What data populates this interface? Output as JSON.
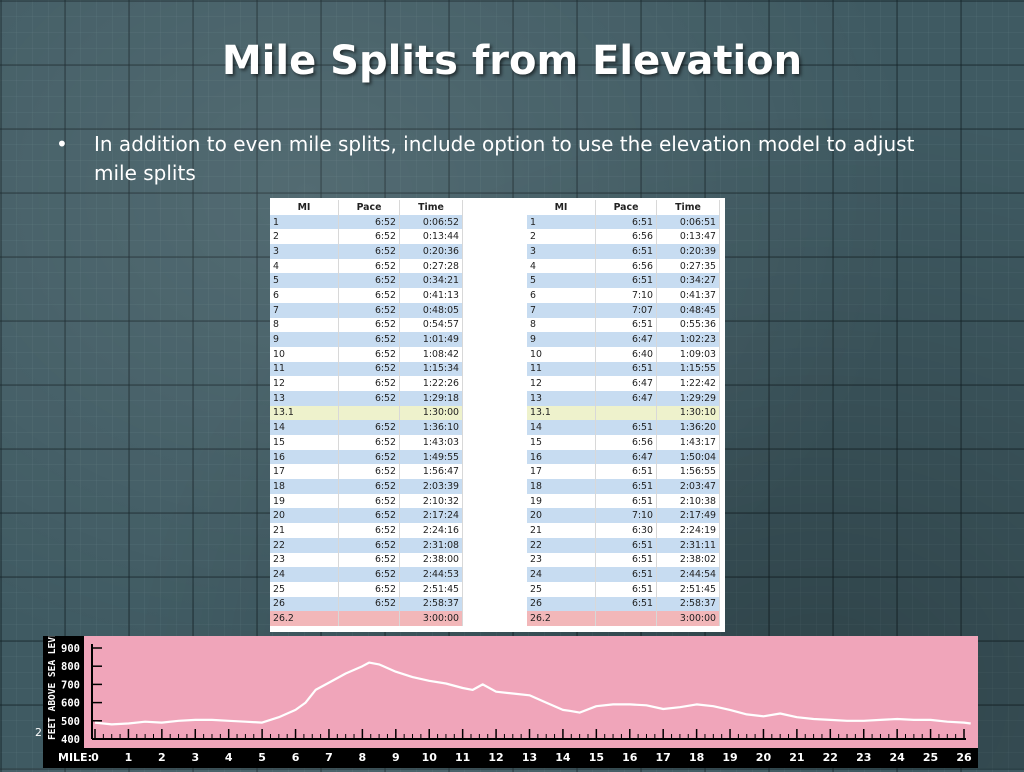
{
  "slide": {
    "title": "Mile Splits from Elevation",
    "bullet": "In addition to even mile splits, include option to use the elevation model to adjust mile splits",
    "bullet_mark": "•",
    "slide_number": "2"
  },
  "tables": {
    "headers": [
      "MI",
      "Pace",
      "Time"
    ],
    "even": [
      [
        "1",
        "6:52",
        "0:06:52"
      ],
      [
        "2",
        "6:52",
        "0:13:44"
      ],
      [
        "3",
        "6:52",
        "0:20:36"
      ],
      [
        "4",
        "6:52",
        "0:27:28"
      ],
      [
        "5",
        "6:52",
        "0:34:21"
      ],
      [
        "6",
        "6:52",
        "0:41:13"
      ],
      [
        "7",
        "6:52",
        "0:48:05"
      ],
      [
        "8",
        "6:52",
        "0:54:57"
      ],
      [
        "9",
        "6:52",
        "1:01:49"
      ],
      [
        "10",
        "6:52",
        "1:08:42"
      ],
      [
        "11",
        "6:52",
        "1:15:34"
      ],
      [
        "12",
        "6:52",
        "1:22:26"
      ],
      [
        "13",
        "6:52",
        "1:29:18"
      ],
      [
        "13.1",
        "",
        "1:30:00"
      ],
      [
        "14",
        "6:52",
        "1:36:10"
      ],
      [
        "15",
        "6:52",
        "1:43:03"
      ],
      [
        "16",
        "6:52",
        "1:49:55"
      ],
      [
        "17",
        "6:52",
        "1:56:47"
      ],
      [
        "18",
        "6:52",
        "2:03:39"
      ],
      [
        "19",
        "6:52",
        "2:10:32"
      ],
      [
        "20",
        "6:52",
        "2:17:24"
      ],
      [
        "21",
        "6:52",
        "2:24:16"
      ],
      [
        "22",
        "6:52",
        "2:31:08"
      ],
      [
        "23",
        "6:52",
        "2:38:00"
      ],
      [
        "24",
        "6:52",
        "2:44:53"
      ],
      [
        "25",
        "6:52",
        "2:51:45"
      ],
      [
        "26",
        "6:52",
        "2:58:37"
      ],
      [
        "26.2",
        "",
        "3:00:00"
      ]
    ],
    "elevation": [
      [
        "1",
        "6:51",
        "0:06:51"
      ],
      [
        "2",
        "6:56",
        "0:13:47"
      ],
      [
        "3",
        "6:51",
        "0:20:39"
      ],
      [
        "4",
        "6:56",
        "0:27:35"
      ],
      [
        "5",
        "6:51",
        "0:34:27"
      ],
      [
        "6",
        "7:10",
        "0:41:37"
      ],
      [
        "7",
        "7:07",
        "0:48:45"
      ],
      [
        "8",
        "6:51",
        "0:55:36"
      ],
      [
        "9",
        "6:47",
        "1:02:23"
      ],
      [
        "10",
        "6:40",
        "1:09:03"
      ],
      [
        "11",
        "6:51",
        "1:15:55"
      ],
      [
        "12",
        "6:47",
        "1:22:42"
      ],
      [
        "13",
        "6:47",
        "1:29:29"
      ],
      [
        "13.1",
        "",
        "1:30:10"
      ],
      [
        "14",
        "6:51",
        "1:36:20"
      ],
      [
        "15",
        "6:56",
        "1:43:17"
      ],
      [
        "16",
        "6:47",
        "1:50:04"
      ],
      [
        "17",
        "6:51",
        "1:56:55"
      ],
      [
        "18",
        "6:51",
        "2:03:47"
      ],
      [
        "19",
        "6:51",
        "2:10:38"
      ],
      [
        "20",
        "7:10",
        "2:17:49"
      ],
      [
        "21",
        "6:30",
        "2:24:19"
      ],
      [
        "22",
        "6:51",
        "2:31:11"
      ],
      [
        "23",
        "6:51",
        "2:38:02"
      ],
      [
        "24",
        "6:51",
        "2:44:54"
      ],
      [
        "25",
        "6:51",
        "2:51:45"
      ],
      [
        "26",
        "6:51",
        "2:58:37"
      ],
      [
        "26.2",
        "",
        "3:00:00"
      ]
    ]
  },
  "chart_data": {
    "type": "line",
    "ylabel": "FEET ABOVE SEA LEVEL",
    "xlabel": "MILE:",
    "ylim": [
      400,
      900
    ],
    "xlim": [
      0,
      26.2
    ],
    "yticks": [
      "900",
      "800",
      "700",
      "600",
      "500",
      "400"
    ],
    "xticks": [
      "0",
      "1",
      "2",
      "3",
      "4",
      "5",
      "6",
      "7",
      "8",
      "9",
      "10",
      "11",
      "12",
      "13",
      "14",
      "15",
      "16",
      "17",
      "18",
      "19",
      "20",
      "21",
      "22",
      "23",
      "24",
      "25",
      "26"
    ],
    "series": [
      {
        "x": [
          0,
          0.5,
          1,
          1.5,
          2,
          2.5,
          3,
          3.5,
          4,
          4.5,
          5,
          5.5,
          6,
          6.3,
          6.6,
          7,
          7.5,
          8,
          8.2,
          8.5,
          9,
          9.5,
          10,
          10.5,
          11,
          11.3,
          11.6,
          12,
          12.5,
          13,
          13.5,
          14,
          14.2,
          14.5,
          15,
          15.5,
          16,
          16.5,
          17,
          17.5,
          18,
          18.5,
          19,
          19.5,
          20,
          20.5,
          21,
          21.5,
          22,
          22.5,
          23,
          23.5,
          24,
          24.5,
          25,
          25.5,
          26,
          26.2
        ],
        "y": [
          490,
          480,
          485,
          495,
          490,
          500,
          505,
          505,
          500,
          495,
          490,
          520,
          560,
          600,
          670,
          710,
          760,
          800,
          820,
          810,
          770,
          740,
          720,
          705,
          680,
          670,
          700,
          660,
          650,
          640,
          600,
          560,
          555,
          545,
          580,
          590,
          590,
          585,
          565,
          575,
          590,
          580,
          560,
          535,
          525,
          540,
          520,
          510,
          505,
          500,
          500,
          505,
          510,
          505,
          505,
          495,
          490,
          485
        ]
      }
    ],
    "grid": false,
    "colors": {
      "background": "#f0a5ba",
      "line": "#ffffff",
      "axis": "#000000"
    }
  }
}
